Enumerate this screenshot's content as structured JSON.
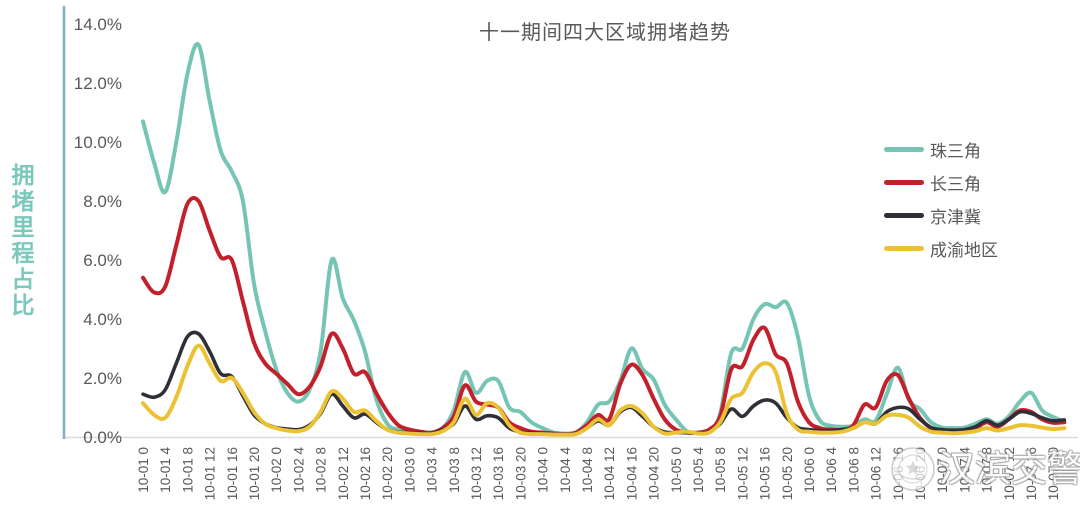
{
  "title": "十一期间四大区域拥堵趋势",
  "y_axis": {
    "title": "拥堵里程占比",
    "tick_labels": [
      "0.0%",
      "2.0%",
      "4.0%",
      "6.0%",
      "8.0%",
      "10.0%",
      "12.0%",
      "14.0%"
    ]
  },
  "x_axis": {
    "labels": [
      "10-01 0",
      "10-01 4",
      "10-01 8",
      "10-01 12",
      "10-01 16",
      "10-01 20",
      "10-02 0",
      "10-02 4",
      "10-02 8",
      "10-02 12",
      "10-02 16",
      "10-02 20",
      "10-03 0",
      "10-03 4",
      "10-03 8",
      "10-03 12",
      "10-03 16",
      "10-03 20",
      "10-04 0",
      "10-04 4",
      "10-04 8",
      "10-04 12",
      "10-04 16",
      "10-04 20",
      "10-05 0",
      "10-05 4",
      "10-05 8",
      "10-05 12",
      "10-05 16",
      "10-05 20",
      "10-06 0",
      "10-06 4",
      "10-06 8",
      "10-06 12",
      "10-06 16",
      "10-06 20",
      "10-07 0",
      "10-07 4",
      "10-07 8",
      "10-07 12",
      "10-07 16",
      "10-07 20"
    ]
  },
  "legend": {
    "items": [
      {
        "label": "珠三角",
        "color": "#76C4B4"
      },
      {
        "label": "长三角",
        "color": "#C2212B"
      },
      {
        "label": "京津冀",
        "color": "#2F2F38"
      },
      {
        "label": "成渝地区",
        "color": "#EAC234"
      }
    ]
  },
  "watermark": {
    "text": "汉滨交警",
    "icon": "police-badge-icon"
  },
  "colors": {
    "axis_line": "#7FB3BE",
    "grid_line": "#DADADA",
    "text": "#595959",
    "y_axis_title_text": "#7CC8BC"
  },
  "chart_data": {
    "type": "line",
    "title": "十一期间四大区域拥堵趋势",
    "xlabel": "",
    "ylabel": "拥堵里程占比",
    "y_unit": "%",
    "ylim": [
      0,
      14
    ],
    "ytick_step": 2,
    "grid": "baseline-only",
    "legend_position": "right",
    "x_start": "10-01 00:00",
    "x_end": "10-07 22:00",
    "x_hours_step": 2,
    "series": [
      {
        "name": "珠三角",
        "color": "#76C4B4",
        "width": 4,
        "values": [
          10.7,
          9.3,
          8.3,
          10.0,
          12.3,
          13.3,
          11.4,
          9.7,
          9.0,
          8.0,
          5.2,
          3.6,
          2.3,
          1.5,
          1.2,
          1.6,
          2.9,
          6.0,
          4.7,
          3.95,
          2.9,
          1.3,
          0.45,
          0.25,
          0.2,
          0.17,
          0.15,
          0.3,
          0.9,
          2.2,
          1.5,
          1.9,
          1.9,
          1.0,
          0.85,
          0.5,
          0.3,
          0.15,
          0.12,
          0.15,
          0.5,
          1.1,
          1.2,
          1.9,
          3.0,
          2.3,
          1.95,
          1.1,
          0.6,
          0.2,
          0.15,
          0.2,
          0.8,
          2.85,
          3.0,
          4.0,
          4.5,
          4.4,
          4.55,
          3.4,
          1.4,
          0.55,
          0.38,
          0.35,
          0.38,
          0.6,
          0.55,
          1.45,
          2.35,
          1.25,
          0.95,
          0.5,
          0.32,
          0.3,
          0.32,
          0.45,
          0.6,
          0.45,
          0.7,
          1.2,
          1.5,
          0.9,
          0.68,
          0.52
        ]
      },
      {
        "name": "长三角",
        "color": "#C2212B",
        "width": 4,
        "values": [
          5.4,
          4.9,
          5.1,
          6.5,
          7.9,
          8.0,
          7.0,
          6.1,
          6.0,
          4.6,
          3.2,
          2.5,
          2.15,
          1.8,
          1.45,
          1.7,
          2.4,
          3.5,
          3.0,
          2.15,
          2.2,
          1.5,
          0.85,
          0.4,
          0.25,
          0.18,
          0.15,
          0.3,
          0.7,
          1.75,
          1.2,
          1.1,
          1.0,
          0.5,
          0.3,
          0.18,
          0.15,
          0.12,
          0.1,
          0.15,
          0.4,
          0.75,
          0.6,
          1.8,
          2.45,
          2.1,
          1.3,
          0.6,
          0.25,
          0.15,
          0.15,
          0.25,
          0.7,
          2.3,
          2.4,
          3.3,
          3.7,
          2.8,
          2.5,
          1.2,
          0.5,
          0.3,
          0.25,
          0.25,
          0.4,
          1.1,
          1.0,
          1.9,
          2.1,
          1.3,
          0.65,
          0.3,
          0.2,
          0.18,
          0.2,
          0.3,
          0.5,
          0.35,
          0.6,
          0.9,
          0.85,
          0.6,
          0.48,
          0.5
        ]
      },
      {
        "name": "京津冀",
        "color": "#2F2F38",
        "width": 3.6,
        "values": [
          1.45,
          1.35,
          1.6,
          2.5,
          3.4,
          3.5,
          2.9,
          2.15,
          2.05,
          1.4,
          0.75,
          0.45,
          0.32,
          0.27,
          0.25,
          0.4,
          0.8,
          1.45,
          1.05,
          0.65,
          0.78,
          0.5,
          0.25,
          0.17,
          0.15,
          0.13,
          0.12,
          0.25,
          0.45,
          1.05,
          0.6,
          0.72,
          0.65,
          0.3,
          0.17,
          0.14,
          0.12,
          0.1,
          0.1,
          0.12,
          0.3,
          0.55,
          0.4,
          0.85,
          1.0,
          0.7,
          0.35,
          0.17,
          0.15,
          0.15,
          0.13,
          0.18,
          0.45,
          0.95,
          0.7,
          1.05,
          1.25,
          1.15,
          0.65,
          0.32,
          0.25,
          0.22,
          0.22,
          0.25,
          0.3,
          0.5,
          0.45,
          0.85,
          1.0,
          0.95,
          0.6,
          0.32,
          0.25,
          0.23,
          0.25,
          0.35,
          0.55,
          0.4,
          0.6,
          0.85,
          0.8,
          0.65,
          0.55,
          0.58
        ]
      },
      {
        "name": "成渝地区",
        "color": "#EAC234",
        "width": 4,
        "values": [
          1.15,
          0.75,
          0.65,
          1.35,
          2.4,
          3.1,
          2.5,
          1.9,
          2.0,
          1.5,
          0.85,
          0.45,
          0.3,
          0.22,
          0.2,
          0.35,
          0.85,
          1.55,
          1.3,
          0.85,
          0.9,
          0.55,
          0.25,
          0.15,
          0.12,
          0.1,
          0.1,
          0.2,
          0.5,
          1.3,
          0.75,
          1.15,
          1.0,
          0.4,
          0.15,
          0.1,
          0.1,
          0.08,
          0.08,
          0.1,
          0.3,
          0.6,
          0.4,
          0.9,
          1.05,
          0.8,
          0.35,
          0.12,
          0.15,
          0.18,
          0.12,
          0.15,
          0.5,
          1.3,
          1.5,
          2.2,
          2.5,
          2.2,
          0.8,
          0.25,
          0.18,
          0.15,
          0.15,
          0.18,
          0.3,
          0.5,
          0.45,
          0.72,
          0.75,
          0.65,
          0.35,
          0.18,
          0.15,
          0.13,
          0.15,
          0.2,
          0.3,
          0.22,
          0.3,
          0.4,
          0.38,
          0.32,
          0.27,
          0.3
        ]
      }
    ]
  }
}
